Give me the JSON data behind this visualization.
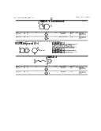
{
  "background_color": "#ffffff",
  "text_color": "#000000",
  "line_color": "#000000",
  "header_left": "US 2011/0165285 A1",
  "header_right": "Jan. 11, 2011",
  "page_number": "10",
  "section1_title": "TABLE 1-continued",
  "section2_title": "Compound 4(+)",
  "section3_title": "TABLE 2",
  "gray": "#888888",
  "light_gray": "#cccccc"
}
